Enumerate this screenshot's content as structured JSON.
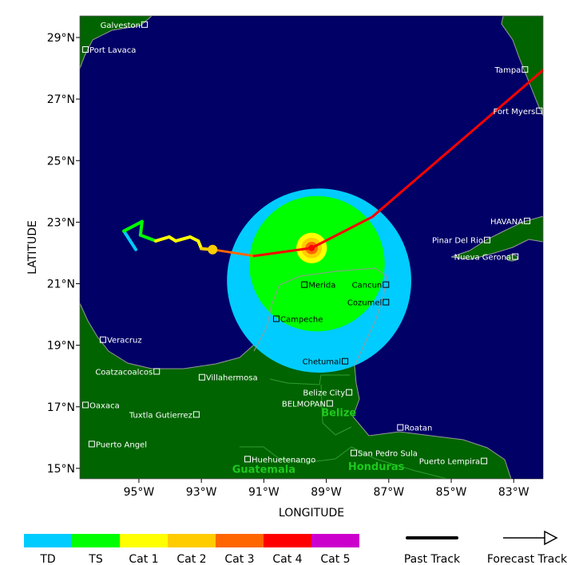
{
  "map": {
    "extent": {
      "lon_west": [
        96.89,
        82.06
      ],
      "lat_north": [
        29.7,
        14.66
      ]
    },
    "colors": {
      "ocean": "#000066",
      "land": "#006400",
      "coast": "#999999",
      "border": "#2f9e2f"
    },
    "x_axis": {
      "title": "LONGITUDE",
      "ticks": [
        {
          "value": 95,
          "label": "95°W"
        },
        {
          "value": 93,
          "label": "93°W"
        },
        {
          "value": 91,
          "label": "91°W"
        },
        {
          "value": 89,
          "label": "89°W"
        },
        {
          "value": 87,
          "label": "87°W"
        },
        {
          "value": 85,
          "label": "85°W"
        },
        {
          "value": 83,
          "label": "83°W"
        }
      ]
    },
    "y_axis": {
      "title": "LATITUDE",
      "ticks": [
        {
          "value": 29,
          "label": "29°N"
        },
        {
          "value": 27,
          "label": "27°N"
        },
        {
          "value": 25,
          "label": "25°N"
        },
        {
          "value": 23,
          "label": "23°N"
        },
        {
          "value": 21,
          "label": "21°N"
        },
        {
          "value": 19,
          "label": "19°N"
        },
        {
          "value": 17,
          "label": "17°N"
        },
        {
          "value": 15,
          "label": "15°N"
        }
      ]
    },
    "cities": [
      {
        "name": "Galveston",
        "lon": 94.82,
        "lat": 29.42,
        "side": "left"
      },
      {
        "name": "Port Lavaca",
        "lon": 96.71,
        "lat": 28.61,
        "side": "right"
      },
      {
        "name": "Tampa",
        "lon": 82.64,
        "lat": 27.96,
        "side": "left"
      },
      {
        "name": "Fort Myers",
        "lon": 82.18,
        "lat": 26.62,
        "side": "left"
      },
      {
        "name": "HAVANA",
        "lon": 82.57,
        "lat": 23.04,
        "side": "left"
      },
      {
        "name": "Pinar Del Rio",
        "lon": 83.85,
        "lat": 22.42,
        "side": "left"
      },
      {
        "name": "Nueva Gerona",
        "lon": 82.95,
        "lat": 21.88,
        "side": "left"
      },
      {
        "name": "Merida",
        "lon": 89.7,
        "lat": 20.97,
        "side": "right",
        "dark": true
      },
      {
        "name": "Cancun",
        "lon": 87.09,
        "lat": 20.97,
        "side": "left",
        "dark": true
      },
      {
        "name": "Cozumel",
        "lon": 87.09,
        "lat": 20.4,
        "side": "left",
        "dark": true
      },
      {
        "name": "Campeche",
        "lon": 90.6,
        "lat": 19.86,
        "side": "right",
        "dark": true
      },
      {
        "name": "Chetumal",
        "lon": 88.4,
        "lat": 18.48,
        "side": "left",
        "dark": true
      },
      {
        "name": "Veracruz",
        "lon": 96.15,
        "lat": 19.18,
        "side": "right"
      },
      {
        "name": "Coatzacoalcos",
        "lon": 94.43,
        "lat": 18.15,
        "side": "left"
      },
      {
        "name": "Villahermosa",
        "lon": 92.98,
        "lat": 17.96,
        "side": "right"
      },
      {
        "name": "Belize City",
        "lon": 88.27,
        "lat": 17.47,
        "side": "left"
      },
      {
        "name": "BELMOPAN",
        "lon": 88.89,
        "lat": 17.11,
        "side": "left"
      },
      {
        "name": "Oaxaca",
        "lon": 96.71,
        "lat": 17.06,
        "side": "right"
      },
      {
        "name": "Tuxtla Gutierrez",
        "lon": 93.16,
        "lat": 16.75,
        "side": "left"
      },
      {
        "name": "Roatan",
        "lon": 86.63,
        "lat": 16.33,
        "side": "right"
      },
      {
        "name": "Puerto Angel",
        "lon": 96.51,
        "lat": 15.79,
        "side": "right"
      },
      {
        "name": "San Pedro Sula",
        "lon": 88.12,
        "lat": 15.5,
        "side": "right"
      },
      {
        "name": "Huehuetenango",
        "lon": 91.52,
        "lat": 15.3,
        "side": "right"
      },
      {
        "name": "Puerto Lempira",
        "lon": 83.95,
        "lat": 15.24,
        "side": "left"
      }
    ],
    "countries": [
      {
        "name": "Belize",
        "lon": 88.6,
        "lat": 16.7
      },
      {
        "name": "Guatemala",
        "lon": 91.0,
        "lat": 14.85
      },
      {
        "name": "Honduras",
        "lon": 87.4,
        "lat": 14.95
      }
    ],
    "wind_fields": [
      {
        "category": "TD",
        "lon": 89.23,
        "lat": 21.1,
        "radius_deg": 2.95,
        "color": "#00ccff"
      },
      {
        "category": "TS",
        "lon": 89.3,
        "lat": 21.65,
        "radius_deg": 2.17,
        "color": "#00ff00"
      },
      {
        "category": "Cat 1",
        "lon": 89.47,
        "lat": 22.16,
        "radius_deg": 0.49,
        "color": "#ffff00"
      },
      {
        "category": "Cat 2",
        "lon": 89.47,
        "lat": 22.16,
        "radius_deg": 0.33,
        "color": "#ffcc00"
      },
      {
        "category": "Cat 3",
        "lon": 89.47,
        "lat": 22.16,
        "radius_deg": 0.2,
        "color": "#ff6600"
      },
      {
        "category": "Cat 4",
        "lon": 89.47,
        "lat": 22.16,
        "radius_deg": 0.1,
        "color": "#ff0000"
      }
    ],
    "past_track": [
      {
        "lon": 95.1,
        "lat": 22.11,
        "category": "TD"
      },
      {
        "lon": 95.48,
        "lat": 22.71,
        "category": "TS"
      },
      {
        "lon": 94.9,
        "lat": 23.02,
        "category": "TS"
      },
      {
        "lon": 94.95,
        "lat": 22.58,
        "category": "TS"
      },
      {
        "lon": 94.46,
        "lat": 22.39,
        "category": "TS"
      },
      {
        "lon": 94.03,
        "lat": 22.52,
        "category": "Cat 1"
      },
      {
        "lon": 93.82,
        "lat": 22.39,
        "category": "Cat 1"
      },
      {
        "lon": 93.36,
        "lat": 22.52,
        "category": "Cat 1"
      },
      {
        "lon": 93.1,
        "lat": 22.39,
        "category": "Cat 1"
      },
      {
        "lon": 93.0,
        "lat": 22.14,
        "category": "Cat 1"
      },
      {
        "lon": 92.64,
        "lat": 22.11,
        "category": "Cat 2"
      }
    ],
    "forecast_track": [
      {
        "lon": 92.64,
        "lat": 22.11,
        "category": "Cat 2"
      },
      {
        "lon": 91.31,
        "lat": 21.9,
        "category": "Cat 3"
      },
      {
        "lon": 89.47,
        "lat": 22.16,
        "category": "Cat 4"
      },
      {
        "lon": 87.53,
        "lat": 23.17,
        "category": "Cat 4"
      },
      {
        "lon": 82.06,
        "lat": 27.94,
        "category": "Cat 4"
      }
    ]
  },
  "legend": {
    "categories": [
      {
        "label": "TD",
        "color": "#00ccff"
      },
      {
        "label": "TS",
        "color": "#00ff00"
      },
      {
        "label": "Cat 1",
        "color": "#ffff00"
      },
      {
        "label": "Cat 2",
        "color": "#ffcc00"
      },
      {
        "label": "Cat 3",
        "color": "#ff6600"
      },
      {
        "label": "Cat 4",
        "color": "#ff0000"
      },
      {
        "label": "Cat 5",
        "color": "#cc00cc"
      }
    ],
    "past_track_label": "Past Track",
    "forecast_track_label": "Forecast Track"
  }
}
